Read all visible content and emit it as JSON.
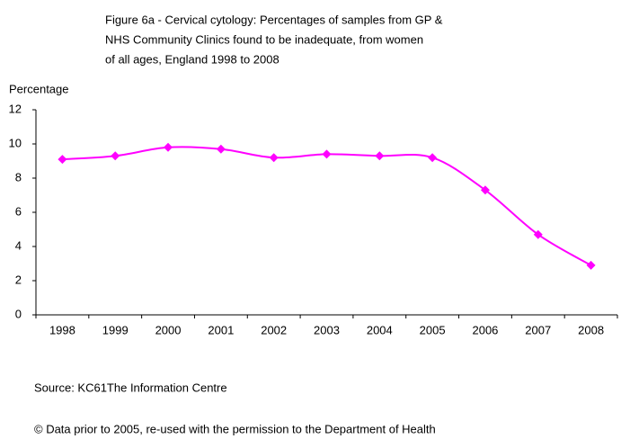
{
  "chart_data": {
    "type": "line",
    "title": [
      "Figure 6a - Cervical cytology: Percentages of samples from GP &",
      "NHS Community Clinics found to be inadequate, from women",
      "of all ages, England 1998 to 2008"
    ],
    "y_label": "Percentage",
    "categories": [
      "1998",
      "1999",
      "2000",
      "2001",
      "2002",
      "2003",
      "2004",
      "2005",
      "2006",
      "2007",
      "2008"
    ],
    "values": [
      9.1,
      9.3,
      9.8,
      9.7,
      9.2,
      9.4,
      9.3,
      9.2,
      7.3,
      4.7,
      2.9
    ],
    "color": "#ff00ff",
    "ylim": [
      0,
      12
    ],
    "yticks": [
      0,
      2,
      4,
      6,
      8,
      10,
      12
    ],
    "source": "Source: KC61The Information Centre",
    "note": "© Data prior to 2005, re-used with the permission to the Department of Health"
  }
}
